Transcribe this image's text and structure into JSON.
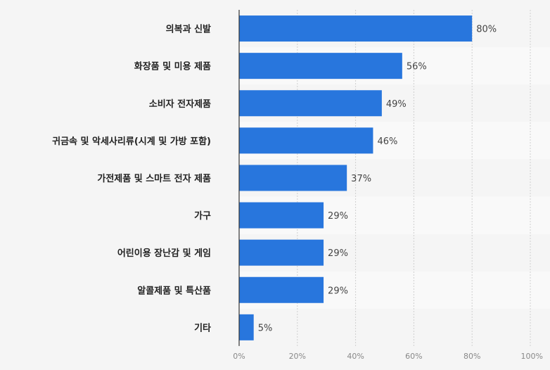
{
  "chart_data": {
    "type": "bar",
    "orientation": "horizontal",
    "categories": [
      "의복과 신발",
      "화장품 및 미용 제품",
      "소비자 전자제품",
      "귀금속 및 악세사리류(시계 및 가방 포함)",
      "가전제품 및 스마트 전자 제품",
      "가구",
      "어린이용 장난감 및 게임",
      "알콜제품 및 특산품",
      "기타"
    ],
    "values": [
      80,
      56,
      49,
      46,
      37,
      29,
      29,
      29,
      5
    ],
    "value_labels": [
      "80%",
      "56%",
      "49%",
      "46%",
      "37%",
      "29%",
      "29%",
      "29%",
      "5%"
    ],
    "xlim": [
      0,
      100
    ],
    "x_ticks": [
      0,
      20,
      40,
      60,
      80,
      100
    ],
    "x_tick_labels": [
      "0%",
      "20%",
      "40%",
      "60%",
      "80%",
      "100%"
    ],
    "grid": true,
    "bar_color": "#2876dd",
    "row_band_color": "#f9f9f9"
  }
}
